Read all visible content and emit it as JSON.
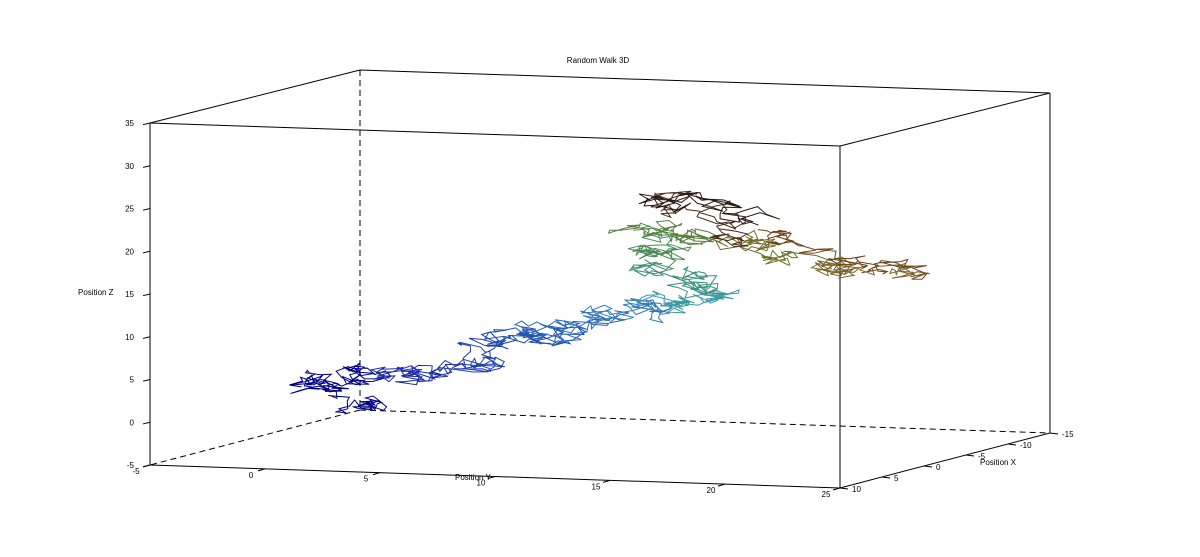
{
  "chart_data": {
    "type": "line",
    "title": "Random Walk 3D",
    "xlabel": "Position X",
    "ylabel": "Position Y",
    "zlabel": "Position Z",
    "xlim": [
      -15,
      10
    ],
    "ylim": [
      -5,
      25
    ],
    "zlim": [
      -5,
      35
    ],
    "x_ticks": [
      "-15",
      "-10",
      "-5",
      "0",
      "5",
      "10"
    ],
    "y_ticks": [
      "-5",
      "0",
      "5",
      "10",
      "15",
      "20",
      "25"
    ],
    "z_ticks": [
      "-5",
      "0",
      "5",
      "10",
      "15",
      "20",
      "25",
      "30",
      "35"
    ],
    "grid": false,
    "series_description": "Single 3D random walk trajectory with colour gradient from dark blue (start) through blue, teal, green, olive, brown to black (end)",
    "waypoints": [
      {
        "y": 4.5,
        "z": 2.5,
        "color": "#000080"
      },
      {
        "y": 2.0,
        "z": 5.0,
        "color": "#00008b"
      },
      {
        "y": 5.0,
        "z": 6.5,
        "color": "#1a2aa8"
      },
      {
        "y": 8.5,
        "z": 7.5,
        "color": "#1f3fae"
      },
      {
        "y": 10.0,
        "z": 11.0,
        "color": "#2050b0"
      },
      {
        "y": 12.5,
        "z": 12.0,
        "color": "#2a65b8"
      },
      {
        "y": 15.0,
        "z": 14.5,
        "color": "#2f7ab8"
      },
      {
        "y": 17.5,
        "z": 15.5,
        "color": "#3a9aa5"
      },
      {
        "y": 19.5,
        "z": 17.5,
        "color": "#3a8f7a"
      },
      {
        "y": 17.0,
        "z": 21.0,
        "color": "#4a8a55"
      },
      {
        "y": 16.0,
        "z": 24.5,
        "color": "#5a7f3c"
      },
      {
        "y": 20.0,
        "z": 24.0,
        "color": "#6e6f2a"
      },
      {
        "y": 24.0,
        "z": 21.0,
        "color": "#7a6224"
      },
      {
        "y": 28.5,
        "z": 20.0,
        "color": "#6a4418"
      },
      {
        "y": 21.0,
        "z": 24.5,
        "color": "#4a2a16"
      },
      {
        "y": 17.0,
        "z": 28.0,
        "color": "#2a1a14"
      },
      {
        "y": 21.5,
        "z": 27.0,
        "color": "#000000"
      }
    ]
  }
}
